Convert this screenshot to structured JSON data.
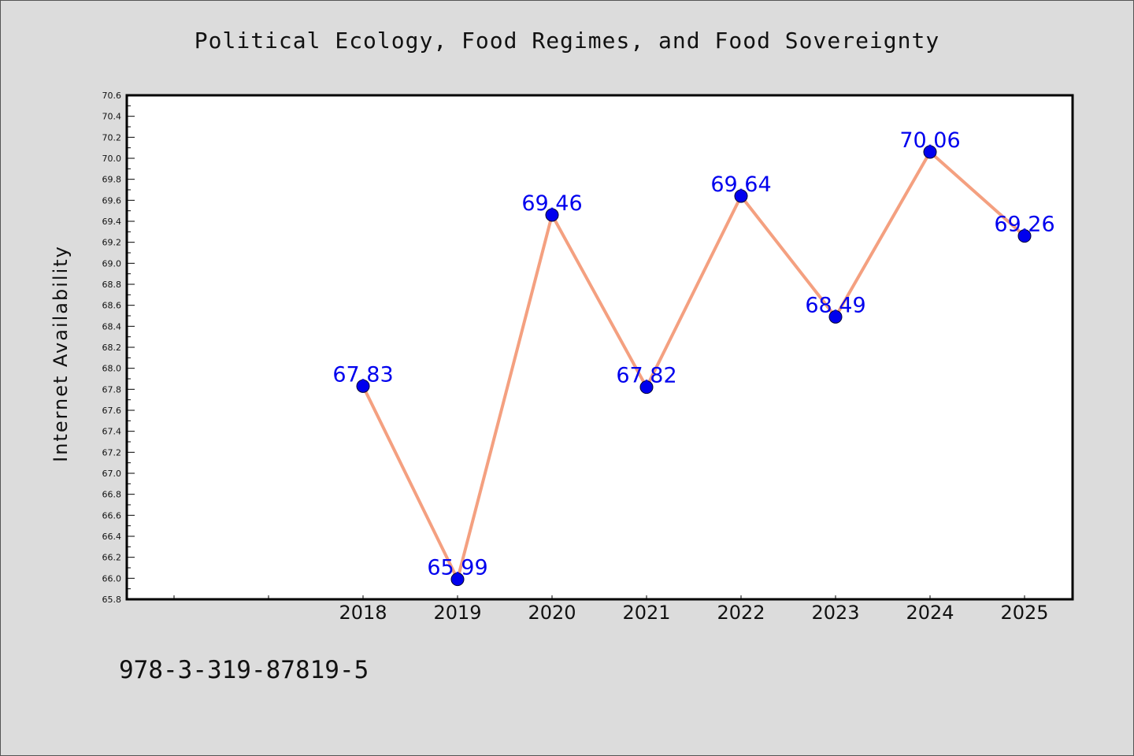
{
  "title": "Political Ecology, Food Regimes, and Food Sovereignty",
  "footer_text": "978-3-319-87819-5",
  "colors": {
    "background": "#dcdcdc",
    "plot_background": "#ffffff",
    "line": "#f4a080",
    "marker": "#0000ee",
    "data_label": "#0000ee"
  },
  "chart_data": {
    "type": "line",
    "title": "Political Ecology, Food Regimes, and Food Sovereignty",
    "xlabel": "",
    "ylabel": "Internet Availability",
    "x": [
      "2018",
      "2019",
      "2020",
      "2021",
      "2022",
      "2023",
      "2024",
      "2025"
    ],
    "values": [
      67.83,
      65.99,
      69.46,
      67.82,
      69.64,
      68.49,
      70.06,
      69.26
    ],
    "data_labels": [
      "67.83",
      "65.99",
      "69.46",
      "67.82",
      "69.64",
      "68.49",
      "70.06",
      "69.26"
    ],
    "ylim": [
      65.8,
      70.6
    ],
    "yticks": [
      "65.8",
      "66.0",
      "66.2",
      "66.4",
      "66.6",
      "66.8",
      "67.0",
      "67.2",
      "67.4",
      "67.6",
      "67.8",
      "68.0",
      "68.2",
      "68.4",
      "68.6",
      "68.8",
      "69.0",
      "69.2",
      "69.4",
      "69.6",
      "69.8",
      "70.0",
      "70.2",
      "70.4",
      "70.6"
    ],
    "grid": false,
    "legend": "none"
  }
}
